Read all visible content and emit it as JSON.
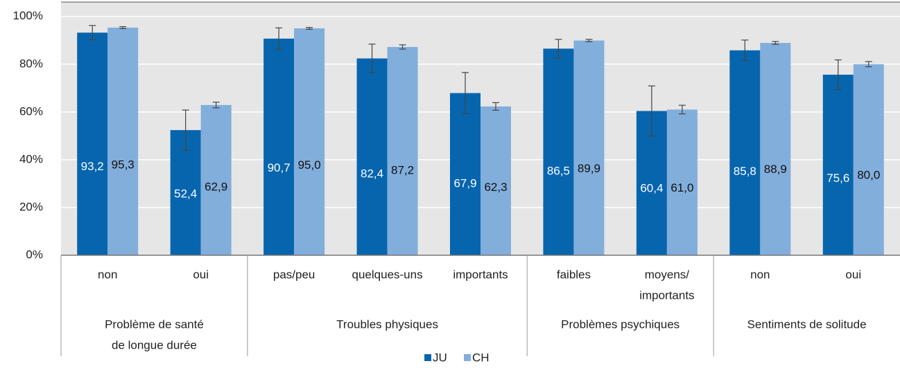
{
  "chart_data": {
    "type": "bar",
    "categories": [
      "non",
      "oui",
      "pas/peu",
      "quelques-uns",
      "importants",
      "faibles",
      [
        "moyens/",
        "importants"
      ],
      "non",
      "oui"
    ],
    "groups": [
      {
        "label": [
          "Problème de santé",
          "de longue durée"
        ],
        "start": 0,
        "end": 1
      },
      {
        "label": [
          "Troubles physiques"
        ],
        "start": 2,
        "end": 4
      },
      {
        "label": [
          "Problèmes psychiques"
        ],
        "start": 5,
        "end": 6
      },
      {
        "label": [
          "Sentiments de solitude"
        ],
        "start": 7,
        "end": 8
      }
    ],
    "series": [
      {
        "name": "JU",
        "color": "#0765ae",
        "values": [
          93.2,
          52.4,
          90.7,
          82.4,
          67.9,
          86.5,
          60.4,
          85.8,
          75.6
        ],
        "value_labels": [
          "93,2",
          "52,4",
          "90,7",
          "82,4",
          "67,9",
          "86,5",
          "60,4",
          "85,8",
          "75,6"
        ],
        "errors": [
          3.0,
          8.4,
          4.5,
          6.0,
          8.6,
          3.9,
          10.5,
          4.3,
          6.2
        ]
      },
      {
        "name": "CH",
        "color": "#82aedc",
        "values": [
          95.3,
          62.9,
          95.0,
          87.2,
          62.3,
          89.9,
          61.0,
          88.9,
          80.0
        ],
        "value_labels": [
          "95,3",
          "62,9",
          "95,0",
          "87,2",
          "62,3",
          "89,9",
          "61,0",
          "88,9",
          "80,0"
        ],
        "errors": [
          0.4,
          1.2,
          0.4,
          0.9,
          1.6,
          0.5,
          1.8,
          0.6,
          1.1
        ]
      }
    ],
    "ylim": [
      0,
      106
    ],
    "yticks": [
      {
        "value": 0,
        "label": "0%"
      },
      {
        "value": 20,
        "label": "20%"
      },
      {
        "value": 40,
        "label": "40%"
      },
      {
        "value": 60,
        "label": "60%"
      },
      {
        "value": 80,
        "label": "80%"
      },
      {
        "value": 100,
        "label": "100%"
      }
    ],
    "grid": true,
    "legend": "bottom"
  }
}
